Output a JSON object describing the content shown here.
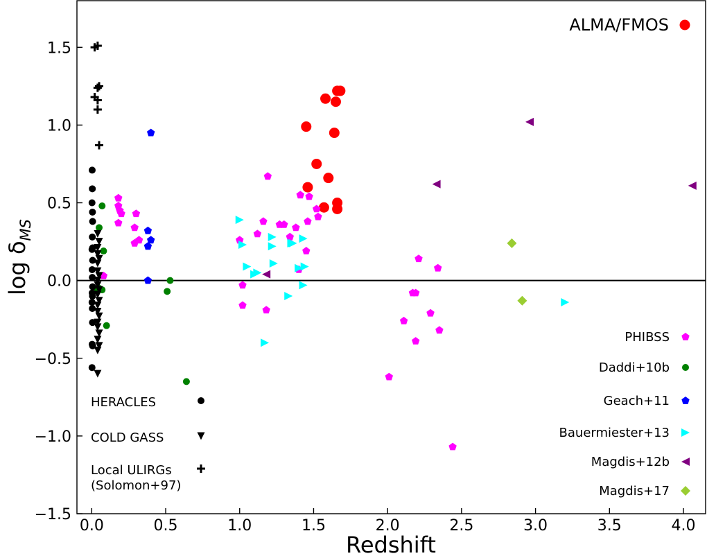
{
  "chart_data": {
    "type": "scatter",
    "xlabel": "Redshift",
    "ylabel_main": "log δ",
    "ylabel_sub": "MS",
    "xlim": [
      -0.1,
      4.15
    ],
    "ylim": [
      -1.5,
      1.8
    ],
    "xticks": [
      0.0,
      0.5,
      1.0,
      1.5,
      2.0,
      2.5,
      3.0,
      3.5,
      4.0
    ],
    "xtick_labels": [
      "0.0",
      "0.5",
      "1.0",
      "1.5",
      "2.0",
      "2.5",
      "3.0",
      "3.5",
      "4.0"
    ],
    "yticks": [
      -1.5,
      -1.0,
      -0.5,
      0.0,
      0.5,
      1.0,
      1.5
    ],
    "ytick_labels": [
      "−1.5",
      "−1.0",
      "−0.5",
      "0.0",
      "0.5",
      "1.0",
      "1.5"
    ],
    "hline_y": 0.0,
    "series": [
      {
        "name": "ALMA/FMOS",
        "marker": "circle-large",
        "color": "#ff0000",
        "legend_pos": "top-right",
        "points": [
          [
            1.45,
            0.99
          ],
          [
            1.52,
            0.75
          ],
          [
            1.46,
            0.6
          ],
          [
            1.58,
            1.17
          ],
          [
            1.65,
            1.15
          ],
          [
            1.66,
            1.22
          ],
          [
            1.68,
            1.22
          ],
          [
            1.64,
            0.95
          ],
          [
            1.6,
            0.66
          ],
          [
            1.57,
            0.47
          ],
          [
            1.66,
            0.5
          ],
          [
            1.66,
            0.46
          ]
        ]
      },
      {
        "name": "PHIBSS",
        "marker": "pentagon",
        "color": "#ff00ff",
        "legend_pos": "right",
        "points": [
          [
            0.18,
            0.53
          ],
          [
            0.18,
            0.48
          ],
          [
            0.19,
            0.45
          ],
          [
            0.2,
            0.43
          ],
          [
            0.18,
            0.37
          ],
          [
            0.29,
            0.34
          ],
          [
            0.3,
            0.43
          ],
          [
            0.29,
            0.24
          ],
          [
            0.32,
            0.26
          ],
          [
            0.08,
            0.03
          ],
          [
            1.0,
            0.26
          ],
          [
            1.02,
            -0.03
          ],
          [
            1.02,
            -0.16
          ],
          [
            1.12,
            0.3
          ],
          [
            1.16,
            0.38
          ],
          [
            1.18,
            -0.19
          ],
          [
            1.19,
            0.67
          ],
          [
            1.27,
            0.36
          ],
          [
            1.3,
            0.36
          ],
          [
            1.34,
            0.28
          ],
          [
            1.38,
            0.34
          ],
          [
            1.4,
            0.07
          ],
          [
            1.41,
            0.55
          ],
          [
            1.45,
            0.19
          ],
          [
            1.46,
            0.38
          ],
          [
            1.52,
            0.46
          ],
          [
            1.53,
            0.41
          ],
          [
            1.47,
            0.54
          ],
          [
            2.01,
            -0.62
          ],
          [
            2.11,
            -0.26
          ],
          [
            2.17,
            -0.08
          ],
          [
            2.19,
            -0.08
          ],
          [
            2.19,
            -0.39
          ],
          [
            2.21,
            0.14
          ],
          [
            2.29,
            -0.21
          ],
          [
            2.34,
            0.08
          ],
          [
            2.35,
            -0.32
          ],
          [
            2.44,
            -1.07
          ]
        ]
      },
      {
        "name": "Daddi+10b",
        "marker": "circle",
        "color": "#008000",
        "legend_pos": "right",
        "points": [
          [
            0.05,
            0.34
          ],
          [
            0.07,
            0.48
          ],
          [
            0.08,
            0.19
          ],
          [
            0.05,
            -0.05
          ],
          [
            0.07,
            -0.06
          ],
          [
            0.04,
            -0.06
          ],
          [
            0.1,
            -0.29
          ],
          [
            0.51,
            -0.07
          ],
          [
            0.53,
            0.0
          ],
          [
            0.64,
            -0.65
          ]
        ]
      },
      {
        "name": "Geach+11",
        "marker": "pentagon",
        "color": "#0000ff",
        "legend_pos": "right",
        "points": [
          [
            0.4,
            0.95
          ],
          [
            0.38,
            0.32
          ],
          [
            0.4,
            0.26
          ],
          [
            0.38,
            0.22
          ],
          [
            0.38,
            0.0
          ]
        ]
      },
      {
        "name": "Bauermiester+13",
        "marker": "triangle-right",
        "color": "#00ffff",
        "legend_pos": "right",
        "points": [
          [
            1.0,
            0.39
          ],
          [
            1.02,
            0.23
          ],
          [
            1.05,
            0.09
          ],
          [
            1.1,
            0.04
          ],
          [
            1.12,
            0.05
          ],
          [
            1.17,
            -0.4
          ],
          [
            1.22,
            0.28
          ],
          [
            1.22,
            0.22
          ],
          [
            1.23,
            0.11
          ],
          [
            1.33,
            -0.1
          ],
          [
            1.35,
            0.24
          ],
          [
            1.36,
            0.24
          ],
          [
            1.4,
            0.08
          ],
          [
            1.43,
            0.27
          ],
          [
            1.43,
            -0.03
          ],
          [
            1.44,
            0.09
          ],
          [
            3.2,
            -0.14
          ]
        ]
      },
      {
        "name": "Magdis+12b",
        "marker": "triangle-left",
        "color": "#800080",
        "legend_pos": "right",
        "points": [
          [
            1.18,
            0.04
          ],
          [
            2.33,
            0.62
          ],
          [
            2.96,
            1.02
          ],
          [
            4.06,
            0.61
          ]
        ]
      },
      {
        "name": "Magdis+17",
        "marker": "diamond",
        "color": "#9acd32",
        "legend_pos": "right",
        "points": [
          [
            2.84,
            0.24
          ],
          [
            2.91,
            -0.13
          ]
        ]
      },
      {
        "name": "HERACLES",
        "marker": "circle",
        "color": "#000000",
        "legend_pos": "bottom-left",
        "points": [
          [
            0.003,
            0.71
          ],
          [
            0.004,
            0.59
          ],
          [
            0.002,
            0.5
          ],
          [
            0.005,
            0.44
          ],
          [
            0.006,
            0.38
          ],
          [
            0.004,
            0.28
          ],
          [
            0.006,
            0.21
          ],
          [
            0.002,
            0.2
          ],
          [
            0.006,
            0.13
          ],
          [
            0.003,
            0.07
          ],
          [
            0.004,
            0.02
          ],
          [
            0.006,
            -0.04
          ],
          [
            0.003,
            -0.08
          ],
          [
            0.005,
            -0.1
          ],
          [
            0.002,
            -0.14
          ],
          [
            0.004,
            -0.18
          ],
          [
            0.005,
            -0.27
          ],
          [
            0.003,
            -0.41
          ],
          [
            0.006,
            -0.42
          ],
          [
            0.002,
            -0.56
          ]
        ]
      },
      {
        "name": "COLD GASS",
        "marker": "triangle-down",
        "color": "#000000",
        "legend_pos": "bottom-left",
        "points": [
          [
            0.04,
            0.3
          ],
          [
            0.05,
            0.25
          ],
          [
            0.04,
            0.21
          ],
          [
            0.04,
            0.17
          ],
          [
            0.05,
            0.14
          ],
          [
            0.04,
            0.11
          ],
          [
            0.04,
            0.06
          ],
          [
            0.05,
            0.03
          ],
          [
            0.04,
            0.0
          ],
          [
            0.04,
            -0.03
          ],
          [
            0.05,
            -0.06
          ],
          [
            0.04,
            -0.09
          ],
          [
            0.05,
            -0.13
          ],
          [
            0.04,
            -0.16
          ],
          [
            0.04,
            -0.2
          ],
          [
            0.05,
            -0.23
          ],
          [
            0.04,
            -0.27
          ],
          [
            0.04,
            -0.3
          ],
          [
            0.05,
            -0.34
          ],
          [
            0.04,
            -0.38
          ],
          [
            0.05,
            -0.42
          ],
          [
            0.04,
            -0.45
          ],
          [
            0.04,
            -0.6
          ]
        ]
      },
      {
        "name": "Local ULIRGs",
        "name2": "(Solomon+97)",
        "marker": "plus",
        "color": "#000000",
        "legend_pos": "bottom-left",
        "points": [
          [
            0.02,
            1.5
          ],
          [
            0.04,
            1.51
          ],
          [
            0.04,
            1.24
          ],
          [
            0.05,
            1.25
          ],
          [
            0.02,
            1.18
          ],
          [
            0.04,
            1.16
          ],
          [
            0.04,
            1.1
          ],
          [
            0.05,
            0.87
          ]
        ]
      }
    ]
  }
}
